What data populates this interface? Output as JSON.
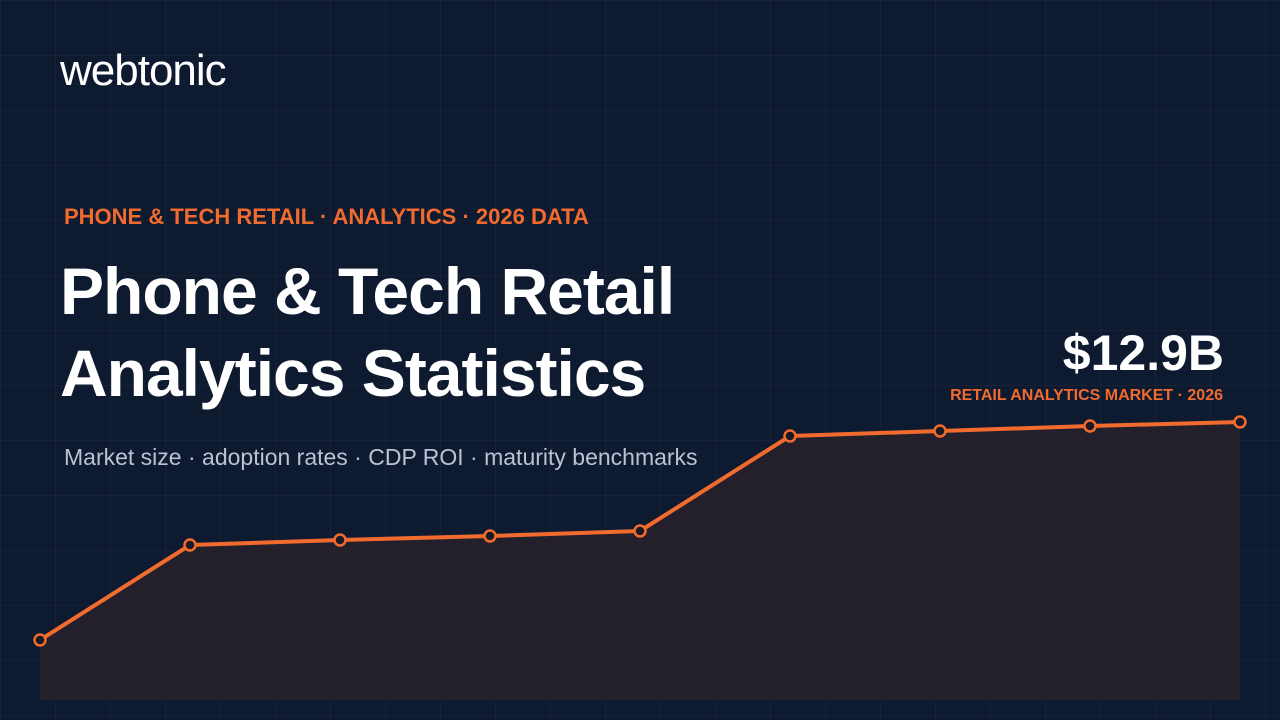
{
  "logo": "webtonic",
  "eyebrow": "PHONE & TECH RETAIL · ANALYTICS · 2026 DATA",
  "title": [
    "Phone & Tech Retail",
    "Analytics Statistics"
  ],
  "stat": {
    "value": "$12.9B",
    "label": "RETAIL ANALYTICS MARKET · 2026"
  },
  "subtitle": "Market size · adoption rates · CDP ROI · maturity benchmarks"
}
